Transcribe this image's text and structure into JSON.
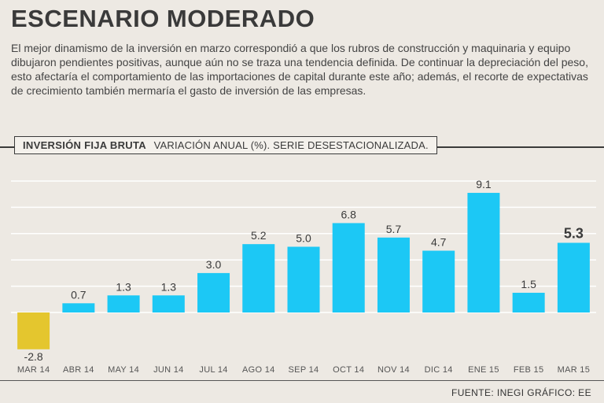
{
  "headline": "ESCENARIO MODERADO",
  "summary": "El mejor dinamismo de la inversión en marzo correspondió a que los rubros de construcción y maquinaria y equipo dibujaron pendientes positivas, aunque aún no se traza una tendencia definida. De continuar la depreciación del peso, esto afectaría el comportamiento de las importaciones de capital durante este año; además, el recorte de expectativas de crecimiento también mermaría el gasto de inversión de las empresas.",
  "chart_header": {
    "series_name": "INVERSIÓN FIJA BRUTA",
    "description": "VARIACIÓN ANUAL (%). SERIE DESESTACIONALIZADA."
  },
  "source": "FUENTE: INEGI GRÁFICO: EE",
  "colors": {
    "positive": "#1cc8f5",
    "negative": "#e4c62e",
    "gridline": "#ffffff",
    "text": "#3a3a3a"
  },
  "chart_data": {
    "type": "bar",
    "title": "INVERSIÓN FIJA BRUTA",
    "subtitle": "VARIACIÓN ANUAL (%). SERIE DESESTACIONALIZADA.",
    "categories": [
      "MAR 14",
      "ABR 14",
      "MAY 14",
      "JUN 14",
      "JUL 14",
      "AGO 14",
      "SEP 14",
      "OCT 14",
      "NOV 14",
      "DIC 14",
      "ENE 15",
      "FEB 15",
      "MAR 15"
    ],
    "values": [
      -2.8,
      0.7,
      1.3,
      1.3,
      3.0,
      5.2,
      5.0,
      6.8,
      5.7,
      4.7,
      9.1,
      1.5,
      5.3
    ],
    "labels": [
      "-2.8",
      "0.7",
      "1.3",
      "1.3",
      "3.0",
      "5.2",
      "5.0",
      "6.8",
      "5.7",
      "4.7",
      "9.1",
      "1.5",
      "5.3"
    ],
    "highlight_index": 12,
    "ylim": [
      -3.5,
      11
    ],
    "grid": true,
    "xlabel": "",
    "ylabel": ""
  }
}
